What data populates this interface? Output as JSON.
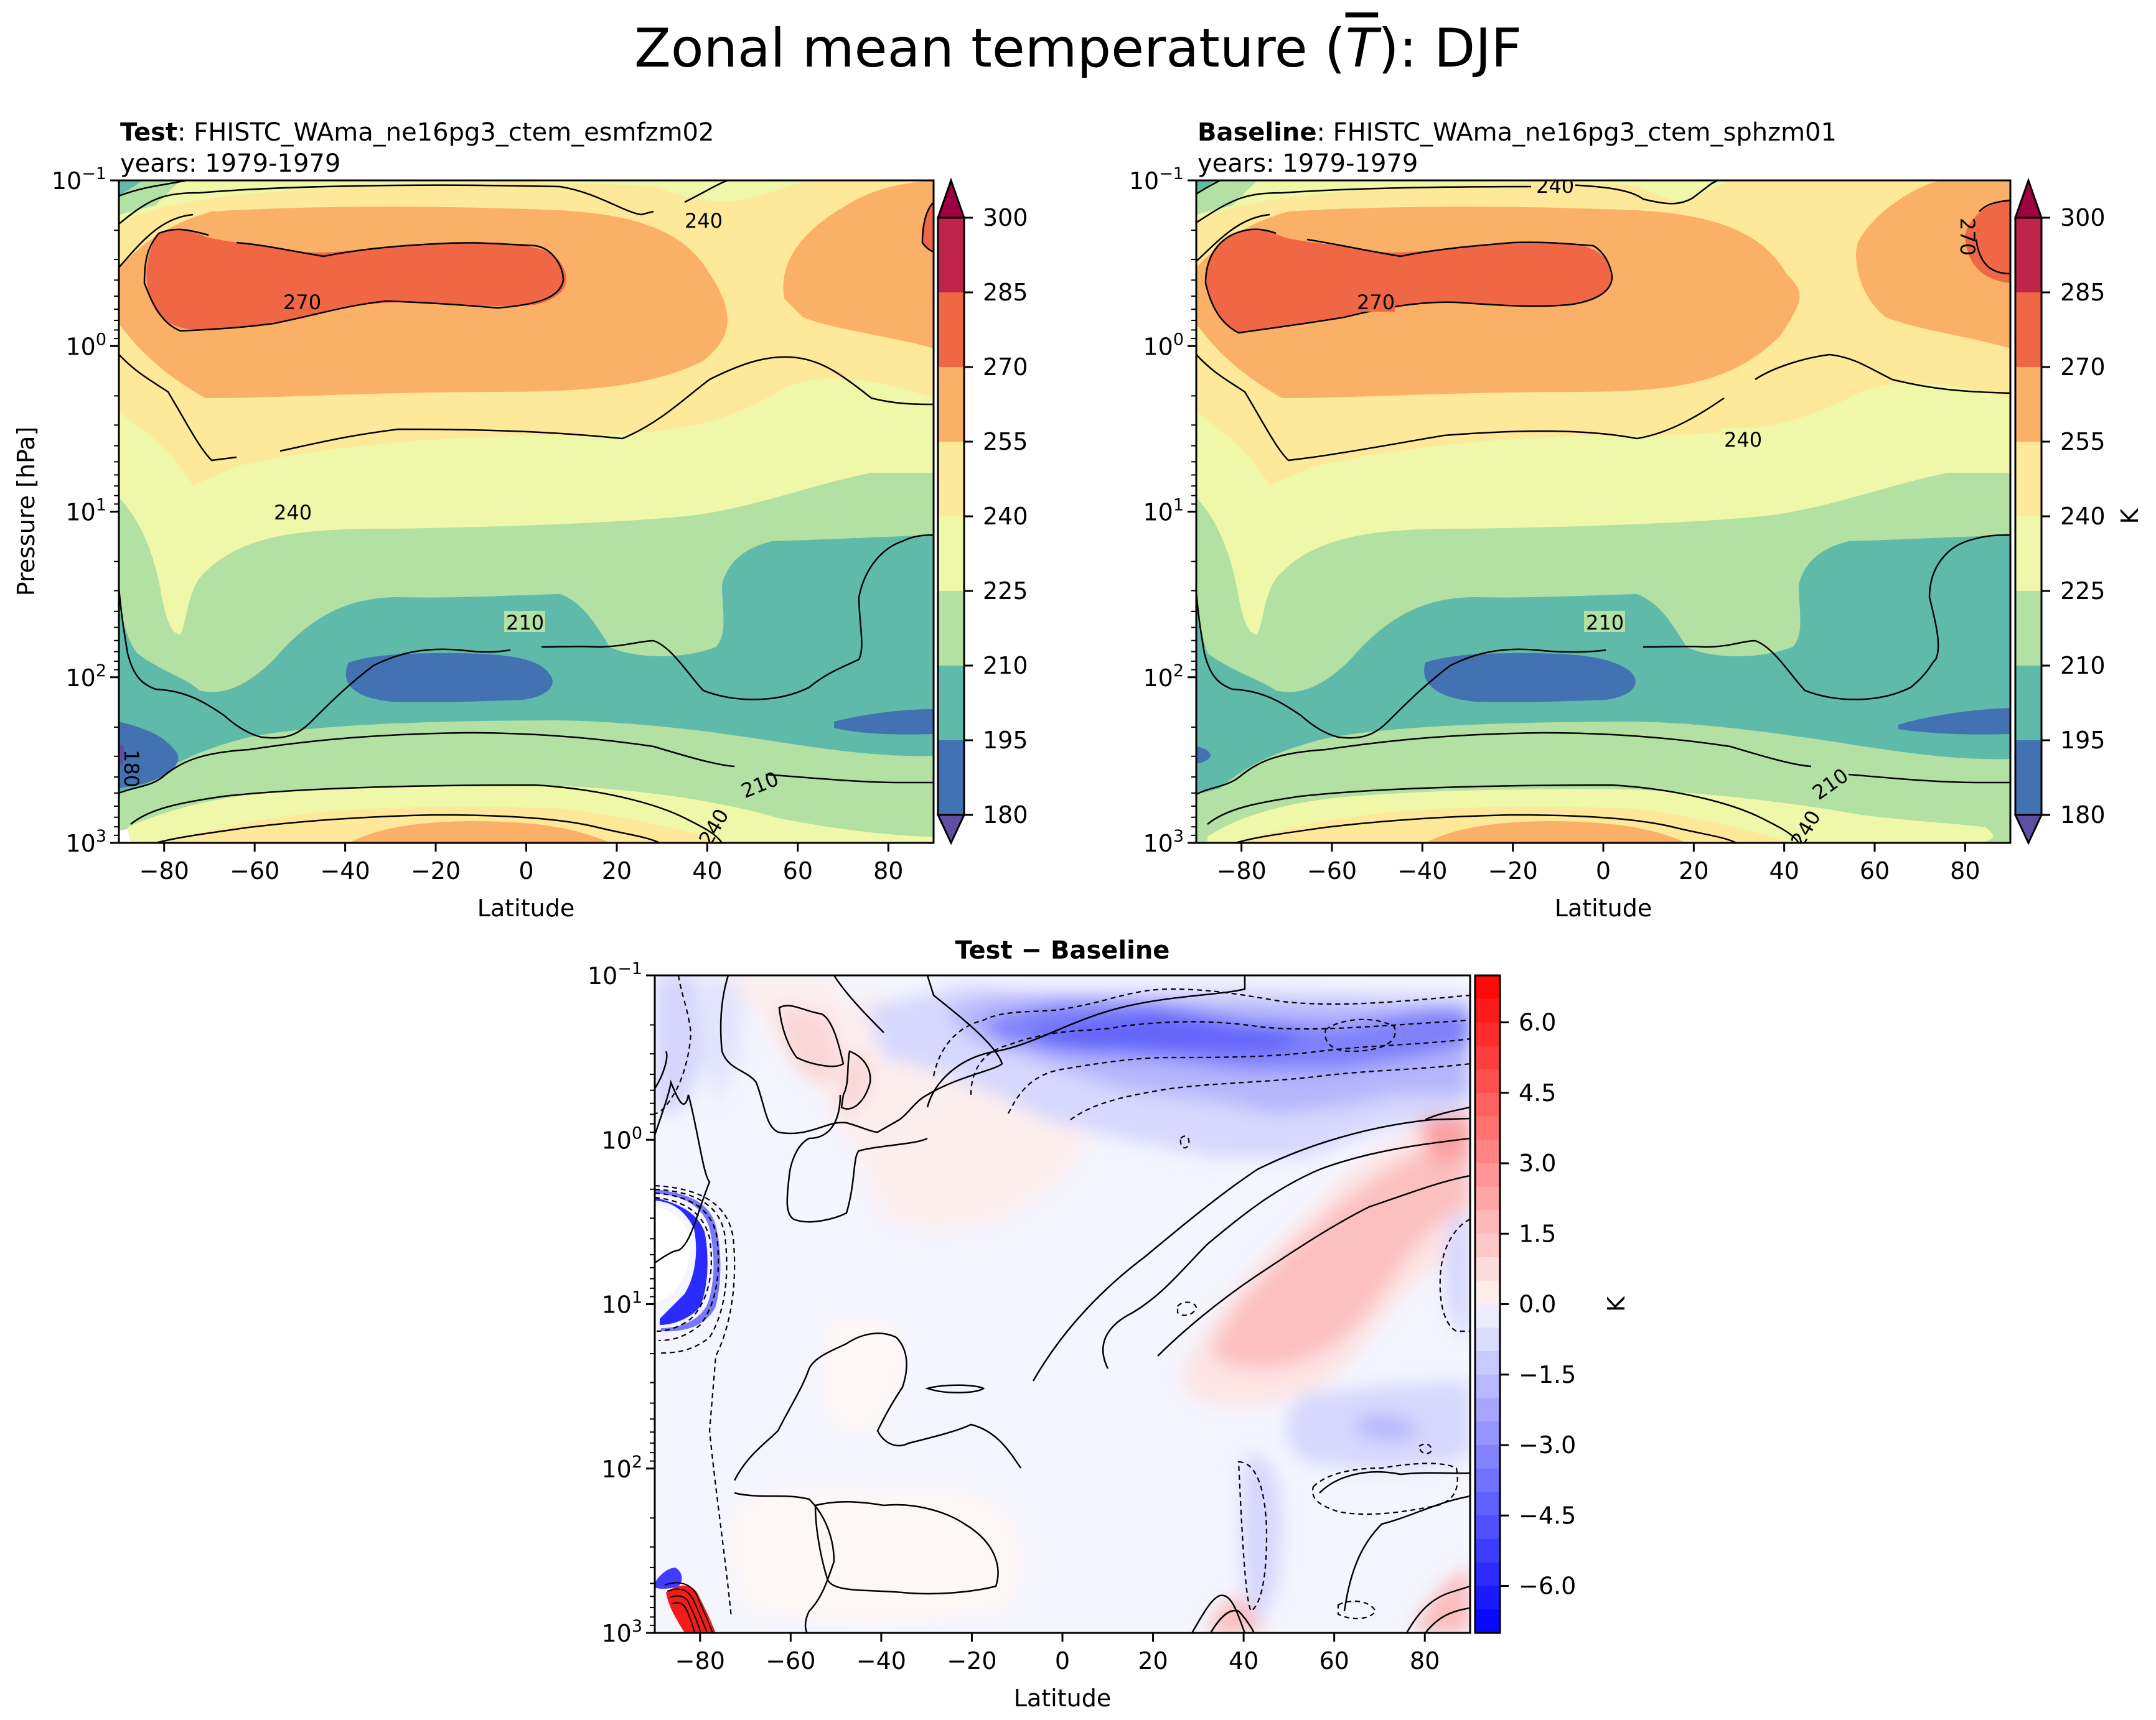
{
  "figure": {
    "title": "Zonal mean temperature (T̄): DJF",
    "title_parts": {
      "prefix": "Zonal mean temperature (",
      "symbol": "T",
      "suffix": "): DJF"
    }
  },
  "panels": {
    "test": {
      "label": "Test",
      "separator": ":",
      "case_name": "FHISTC_WAma_ne16pg3_ctem_esmfzm02",
      "years": "years: 1979-1979"
    },
    "baseline": {
      "label": "Baseline",
      "separator": ":",
      "case_name": "FHISTC_WAma_ne16pg3_ctem_sphzm01",
      "years": "years: 1979-1979"
    },
    "diff": {
      "title": "Test − Baseline"
    }
  },
  "chart_data": [
    {
      "id": "test",
      "type": "heatmap",
      "subtype": "filled-contour",
      "title": "Test: FHISTC_WAma_ne16pg3_ctem_esmfzm02",
      "xlabel": "Latitude",
      "ylabel": "Pressure [hPa]",
      "xlim": [
        -90,
        90
      ],
      "ylim": [
        1000,
        0.1
      ],
      "yscale": "log",
      "xticks": [
        -80,
        -60,
        -40,
        -20,
        0,
        20,
        40,
        60,
        80
      ],
      "xtick_labels": [
        "−80",
        "−60",
        "−40",
        "−20",
        "0",
        "20",
        "40",
        "60",
        "80"
      ],
      "yticks": [
        0.1,
        1,
        10,
        100,
        1000
      ],
      "ytick_labels": [
        {
          "base": "10",
          "exp": "−1"
        },
        {
          "base": "10",
          "exp": "0"
        },
        {
          "base": "10",
          "exp": "1"
        },
        {
          "base": "10",
          "exp": "2"
        },
        {
          "base": "10",
          "exp": "3"
        }
      ],
      "contour_levels": [
        180,
        195,
        210,
        225,
        240,
        255,
        270,
        285,
        300
      ],
      "contour_line_labels": [
        "270",
        "240",
        "240",
        "210",
        "210",
        "240",
        "180"
      ],
      "colorbar": {
        "label": "",
        "ticks": [
          "300",
          "285",
          "270",
          "255",
          "240",
          "225",
          "210",
          "195",
          "180"
        ],
        "extend": "both"
      },
      "features": [
        {
          "name": "warm stratopause max",
          "lat_range": [
            -68,
            22
          ],
          "p_range": [
            0.4,
            2.0
          ],
          "value_range": [
            270,
            285
          ]
        },
        {
          "name": "cold tropical tropopause",
          "lat_range": [
            -26,
            25
          ],
          "p_range": [
            70,
            140
          ],
          "value_range": [
            180,
            195
          ]
        },
        {
          "name": "cold southern polar lower strat",
          "lat_range": [
            -90,
            -70
          ],
          "p_range": [
            150,
            600
          ],
          "value_range": [
            180,
            195
          ]
        },
        {
          "name": "cold northern high-lat",
          "lat_range": [
            60,
            90
          ],
          "p_range": [
            180,
            300
          ],
          "value_range": [
            180,
            195
          ]
        },
        {
          "name": "warm tropical surface",
          "lat_range": [
            -40,
            40
          ],
          "p_range": [
            700,
            1000
          ],
          "value_range": [
            255,
            270
          ]
        },
        {
          "name": "warm NH polar upper",
          "lat_range": [
            55,
            90
          ],
          "p_range": [
            0.1,
            1.2
          ],
          "value_range": [
            255,
            285
          ]
        }
      ]
    },
    {
      "id": "baseline",
      "type": "heatmap",
      "subtype": "filled-contour",
      "title": "Baseline: FHISTC_WAma_ne16pg3_ctem_sphzm01",
      "xlabel": "Latitude",
      "ylabel": "",
      "xlim": [
        -90,
        90
      ],
      "ylim": [
        1000,
        0.1
      ],
      "yscale": "log",
      "xticks": [
        -80,
        -60,
        -40,
        -20,
        0,
        20,
        40,
        60,
        80
      ],
      "xtick_labels": [
        "−80",
        "−60",
        "−40",
        "−20",
        "0",
        "20",
        "40",
        "60",
        "80"
      ],
      "yticks": [
        0.1,
        1,
        10,
        100,
        1000
      ],
      "ytick_labels": [
        {
          "base": "10",
          "exp": "−1"
        },
        {
          "base": "10",
          "exp": "0"
        },
        {
          "base": "10",
          "exp": "1"
        },
        {
          "base": "10",
          "exp": "2"
        },
        {
          "base": "10",
          "exp": "3"
        }
      ],
      "contour_levels": [
        180,
        195,
        210,
        225,
        240,
        255,
        270,
        285,
        300
      ],
      "contour_line_labels": [
        "240",
        "270",
        "270",
        "240",
        "210",
        "210",
        "240"
      ],
      "colorbar": {
        "label": "K",
        "ticks": [
          "300",
          "285",
          "270",
          "255",
          "240",
          "225",
          "210",
          "195",
          "180"
        ],
        "extend": "both"
      },
      "features": [
        {
          "name": "warm stratopause max",
          "lat_range": [
            -68,
            20
          ],
          "p_range": [
            0.4,
            2.0
          ],
          "value_range": [
            270,
            285
          ]
        },
        {
          "name": "cold tropical tropopause",
          "lat_range": [
            -27,
            20
          ],
          "p_range": [
            70,
            140
          ],
          "value_range": [
            180,
            195
          ]
        },
        {
          "name": "warm NH polar upper",
          "lat_range": [
            50,
            90
          ],
          "p_range": [
            0.1,
            2.0
          ],
          "value_range": [
            255,
            285
          ]
        },
        {
          "name": "cold northern high-lat",
          "lat_range": [
            62,
            90
          ],
          "p_range": [
            180,
            300
          ],
          "value_range": [
            180,
            195
          ]
        }
      ]
    },
    {
      "id": "diff",
      "type": "heatmap",
      "subtype": "filled-contour",
      "title": "Test − Baseline",
      "xlabel": "Latitude",
      "ylabel": "",
      "xlim": [
        -90,
        90
      ],
      "ylim": [
        1000,
        0.1
      ],
      "yscale": "log",
      "xticks": [
        -80,
        -60,
        -40,
        -20,
        0,
        20,
        40,
        60,
        80
      ],
      "xtick_labels": [
        "−80",
        "−60",
        "−40",
        "−20",
        "0",
        "20",
        "40",
        "60",
        "80"
      ],
      "yticks": [
        0.1,
        1,
        10,
        100,
        1000
      ],
      "ytick_labels": [
        {
          "base": "10",
          "exp": "−1"
        },
        {
          "base": "10",
          "exp": "0"
        },
        {
          "base": "10",
          "exp": "1"
        },
        {
          "base": "10",
          "exp": "2"
        },
        {
          "base": "10",
          "exp": "3"
        }
      ],
      "value_range": [
        -7,
        7
      ],
      "colorbar": {
        "label": "K",
        "ticks": [
          "6.0",
          "4.5",
          "3.0",
          "1.5",
          "0.0",
          "−1.5",
          "−3.0",
          "−4.5",
          "−6.0"
        ],
        "tick_values": [
          6.0,
          4.5,
          3.0,
          1.5,
          0.0,
          -1.5,
          -3.0,
          -4.5,
          -6.0
        ],
        "extend": "neither"
      },
      "features": [
        {
          "name": "negative NH upper strat",
          "lat_range": [
            45,
            90
          ],
          "p_range": [
            0.15,
            3
          ],
          "value_range": [
            -4.5,
            -1
          ]
        },
        {
          "name": "positive NH mid strat",
          "lat_range": [
            40,
            90
          ],
          "p_range": [
            2,
            80
          ],
          "value_range": [
            0.5,
            3
          ]
        },
        {
          "name": "positive upper tropics",
          "lat_range": [
            -20,
            20
          ],
          "p_range": [
            0.2,
            1.5
          ],
          "value_range": [
            0.5,
            2
          ]
        },
        {
          "name": "large negative south pole near surface",
          "lat_range": [
            -90,
            -70
          ],
          "p_range": [
            100,
            800
          ],
          "value_range": [
            -7,
            -1
          ]
        },
        {
          "name": "large positive south pole surface",
          "lat_range": [
            -90,
            -70
          ],
          "p_range": [
            750,
            1000
          ],
          "value_range": [
            1,
            7
          ]
        }
      ]
    }
  ],
  "colors": {
    "spectral_levels": [
      "#5e4fa2",
      "#4272b2",
      "#5fbaaa",
      "#b3e0a3",
      "#eef8a8",
      "#fee89a",
      "#fbb068",
      "#ef6745",
      "#be2449",
      "#9e0142"
    ],
    "diff_pos": "#ff0000",
    "diff_neg": "#0000ff",
    "contour_line": "#000000"
  }
}
